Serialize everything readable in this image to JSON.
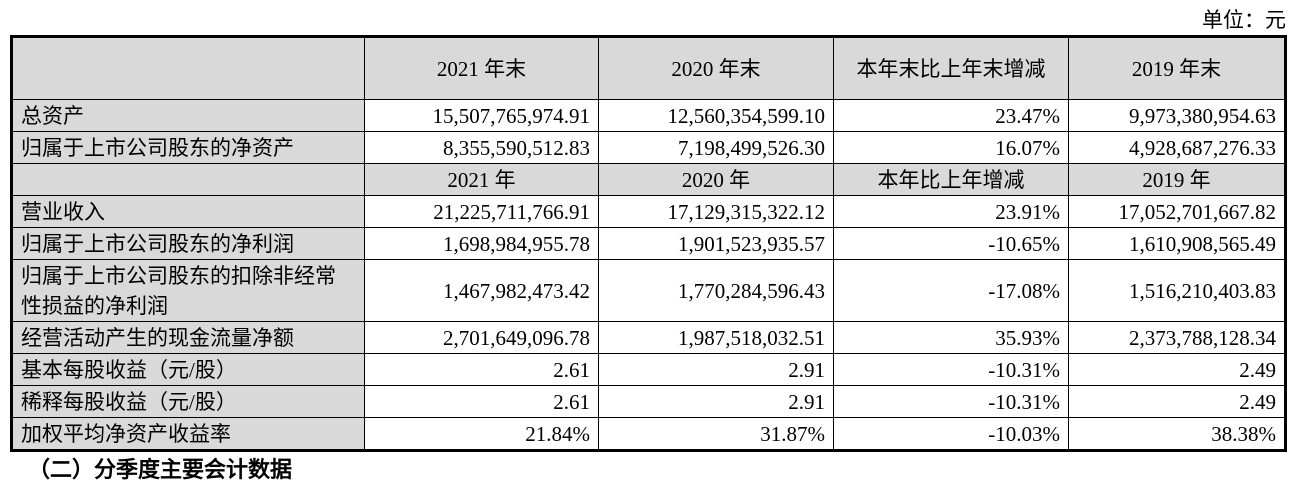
{
  "unit": "单位：元",
  "header1": [
    "",
    "2021 年末",
    "2020 年末",
    "本年末比上年末增减",
    "2019 年末"
  ],
  "rows1": [
    {
      "label": "总资产",
      "values": [
        "15,507,765,974.91",
        "12,560,354,599.10",
        "23.47%",
        "9,973,380,954.63"
      ]
    },
    {
      "label": "归属于上市公司股东的净资产",
      "values": [
        "8,355,590,512.83",
        "7,198,499,526.30",
        "16.07%",
        "4,928,687,276.33"
      ]
    }
  ],
  "header2": [
    "",
    "2021 年",
    "2020 年",
    "本年比上年增减",
    "2019 年"
  ],
  "rows2": [
    {
      "label": "营业收入",
      "values": [
        "21,225,711,766.91",
        "17,129,315,322.12",
        "23.91%",
        "17,052,701,667.82"
      ]
    },
    {
      "label": "归属于上市公司股东的净利润",
      "values": [
        "1,698,984,955.78",
        "1,901,523,935.57",
        "-10.65%",
        "1,610,908,565.49"
      ]
    },
    {
      "label": "归属于上市公司股东的扣除非经常性损益的净利润",
      "values": [
        "1,467,982,473.42",
        "1,770,284,596.43",
        "-17.08%",
        "1,516,210,403.83"
      ]
    },
    {
      "label": "经营活动产生的现金流量净额",
      "values": [
        "2,701,649,096.78",
        "1,987,518,032.51",
        "35.93%",
        "2,373,788,128.34"
      ]
    },
    {
      "label": "基本每股收益（元/股）",
      "values": [
        "2.61",
        "2.91",
        "-10.31%",
        "2.49"
      ]
    },
    {
      "label": "稀释每股收益（元/股）",
      "values": [
        "2.61",
        "2.91",
        "-10.31%",
        "2.49"
      ]
    },
    {
      "label": "加权平均净资产收益率",
      "values": [
        "21.84%",
        "31.87%",
        "-10.03%",
        "38.38%"
      ]
    }
  ],
  "footer_heading": "（二）分季度主要会计数据"
}
